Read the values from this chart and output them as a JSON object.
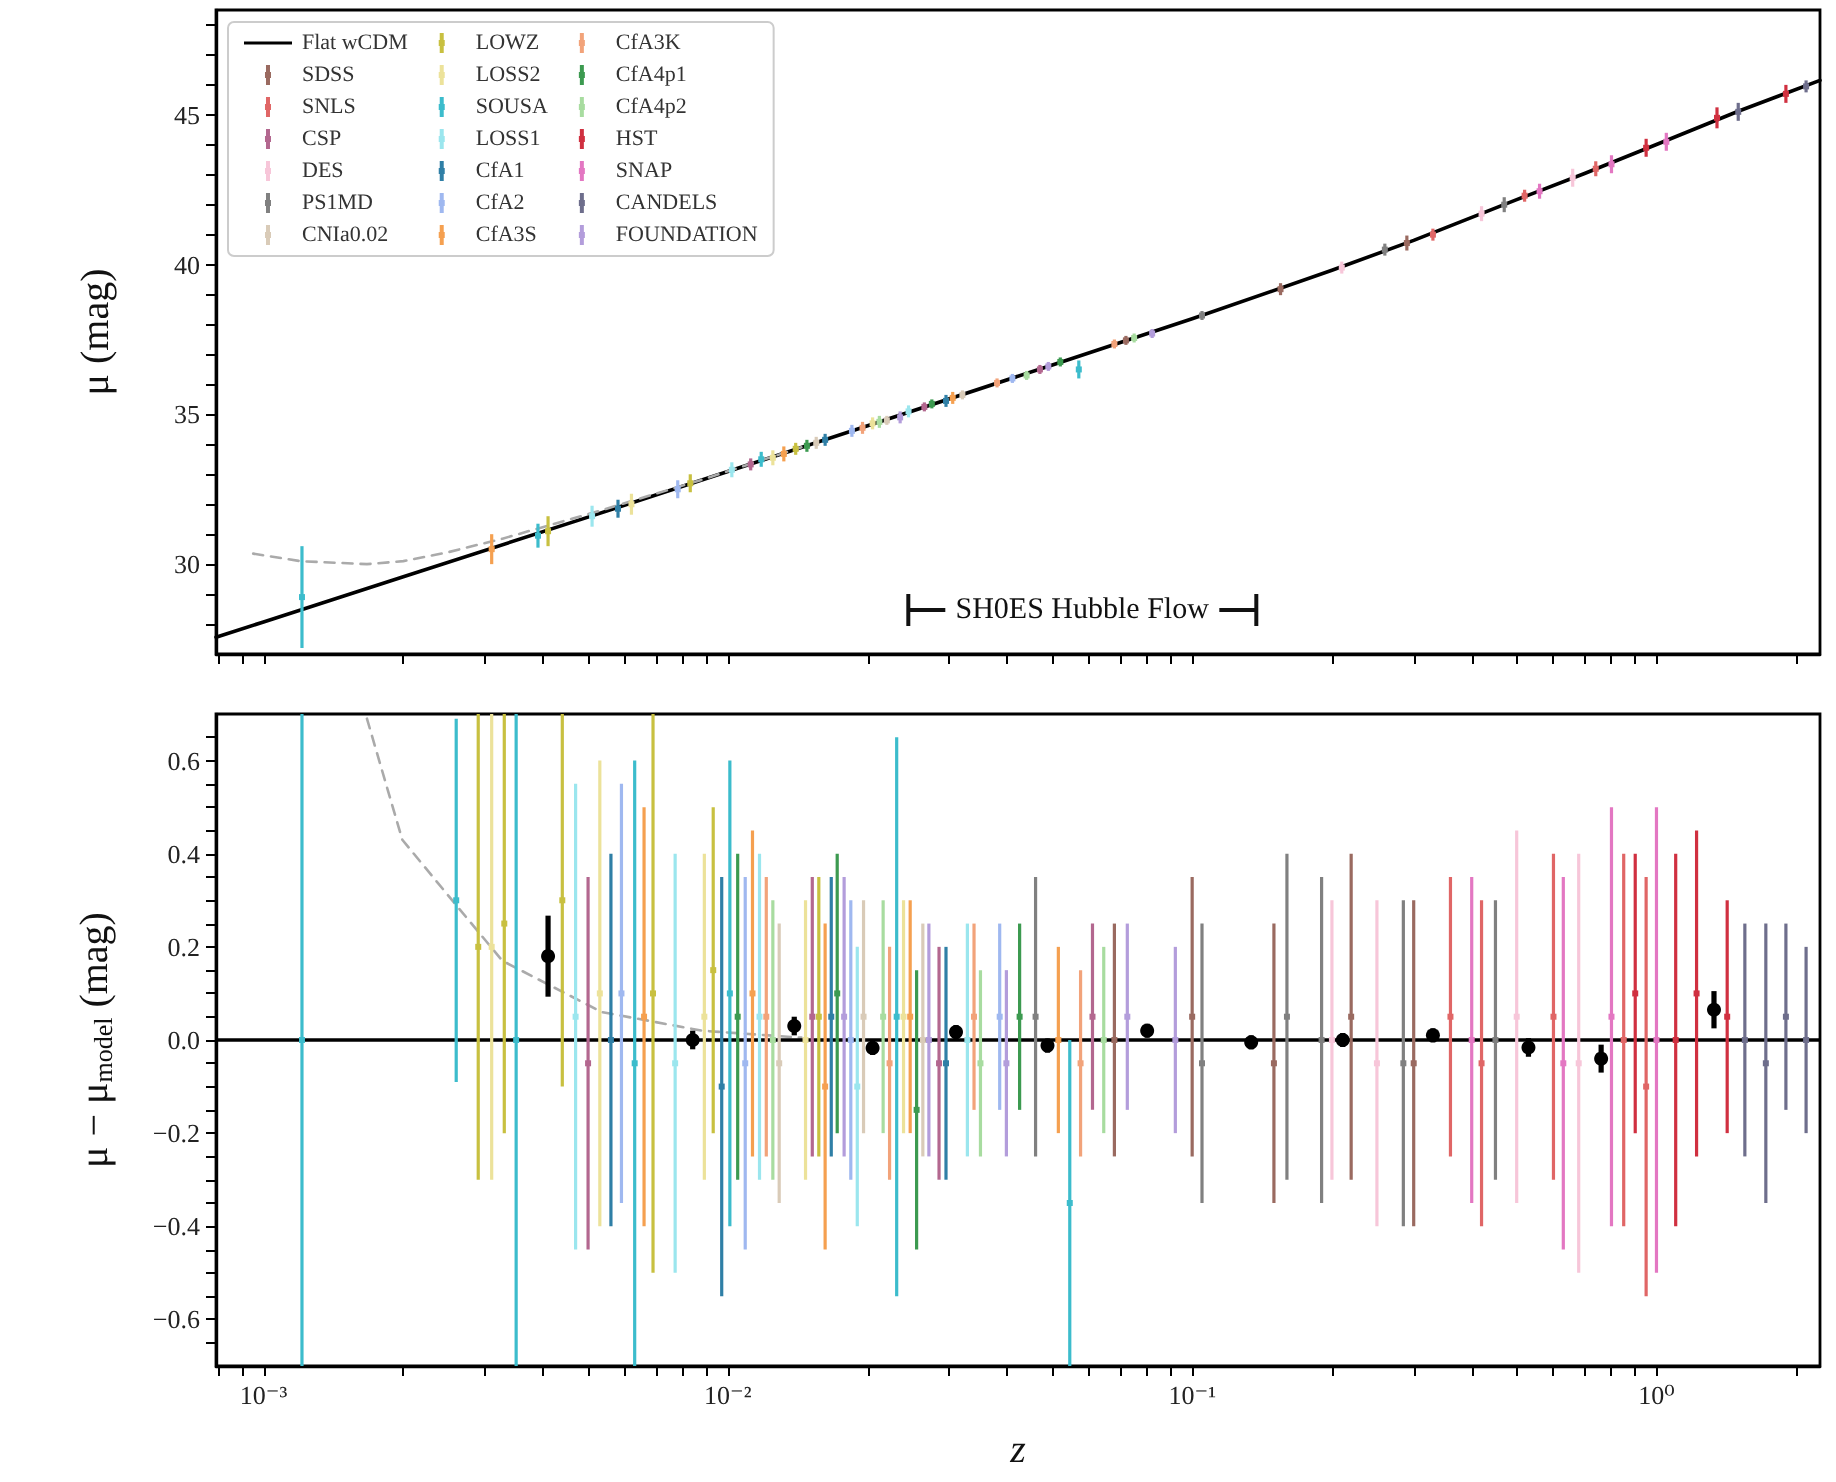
{
  "chart_data": [
    {
      "type": "scatter",
      "ylabel": "μ (mag)",
      "log": "x",
      "tick_labels": "y",
      "legend": "top left",
      "xlim": [
        0.00079,
        2.25
      ],
      "xticks": [
        {
          "value": 0.0008,
          "label": null
        },
        {
          "value": 0.0009,
          "label": null
        },
        {
          "value": 0.001,
          "label": null
        },
        {
          "value": 0.002,
          "label": null
        },
        {
          "value": 0.003,
          "label": null
        },
        {
          "value": 0.004,
          "label": null
        },
        {
          "value": 0.005,
          "label": null
        },
        {
          "value": 0.006,
          "label": null
        },
        {
          "value": 0.007,
          "label": null
        },
        {
          "value": 0.008,
          "label": null
        },
        {
          "value": 0.009,
          "label": null
        },
        {
          "value": 0.01,
          "label": null
        },
        {
          "value": 0.02,
          "label": null
        },
        {
          "value": 0.03,
          "label": null
        },
        {
          "value": 0.04,
          "label": null
        },
        {
          "value": 0.05,
          "label": null
        },
        {
          "value": 0.06,
          "label": null
        },
        {
          "value": 0.07,
          "label": null
        },
        {
          "value": 0.08,
          "label": null
        },
        {
          "value": 0.09,
          "label": null
        },
        {
          "value": 0.1,
          "label": null
        },
        {
          "value": 0.2,
          "label": null
        },
        {
          "value": 0.3,
          "label": null
        },
        {
          "value": 0.4,
          "label": null
        },
        {
          "value": 0.5,
          "label": null
        },
        {
          "value": 0.6,
          "label": null
        },
        {
          "value": 0.7,
          "label": null
        },
        {
          "value": 0.8,
          "label": null
        },
        {
          "value": 0.9,
          "label": null
        },
        {
          "value": 1,
          "label": null
        },
        {
          "value": 2,
          "label": null
        }
      ],
      "ylim": [
        27,
        48.5
      ],
      "yticks": [
        {
          "value": 28,
          "label": null
        },
        {
          "value": 29,
          "label": null
        },
        30,
        {
          "value": 31,
          "label": null
        },
        {
          "value": 32,
          "label": null
        },
        {
          "value": 33,
          "label": null
        },
        {
          "value": 34,
          "label": null
        },
        35,
        {
          "value": 36,
          "label": null
        },
        {
          "value": 37,
          "label": null
        },
        {
          "value": 38,
          "label": null
        },
        {
          "value": 39,
          "label": null
        },
        40,
        {
          "value": 41,
          "label": null
        },
        {
          "value": 42,
          "label": null
        },
        {
          "value": 43,
          "label": null
        },
        {
          "value": 44,
          "label": null
        },
        45,
        {
          "value": 46,
          "label": null
        },
        {
          "value": 47,
          "label": null
        },
        {
          "value": 48,
          "label": null
        }
      ],
      "annotations": [
        "SH0ES Hubble Flow"
      ],
      "series": [
        {
          "name": "Flat wCDM",
          "type": "line",
          "color": "#000000",
          "x": [
            0.00079,
            0.001,
            0.002,
            0.005,
            0.01,
            0.02,
            0.05,
            0.1,
            0.2,
            0.3,
            0.5,
            0.7,
            1,
            1.5,
            2.25
          ],
          "values": [
            27.56,
            28.07,
            29.58,
            31.57,
            33.09,
            34.62,
            36.65,
            38.19,
            39.81,
            40.81,
            42.17,
            43.04,
            44.01,
            45.12,
            46.15
          ]
        },
        {
          "type": "line",
          "line_style": "dashed",
          "color": "#aaaaaa",
          "x": [
            0.00095,
            0.0012,
            0.00167,
            0.002,
            0.0025,
            0.00327,
            0.00535,
            0.0088,
            0.0144
          ],
          "values": [
            30.35,
            30.1,
            30.0,
            30.1,
            30.4,
            30.85,
            31.8,
            32.82,
            33.9
          ]
        },
        {
          "name": "SDSS",
          "marker": "square",
          "color": "#9a6a60",
          "x": [
            0.072,
            0.155,
            0.29
          ],
          "values": [
            37.47,
            39.18,
            40.72
          ],
          "errors": [
            0.15,
            0.2,
            0.25
          ]
        },
        {
          "name": "SNLS",
          "marker": "square",
          "color": "#e06666",
          "x": [
            0.33,
            0.52,
            0.74
          ],
          "values": [
            41.0,
            42.3,
            43.2
          ],
          "errors": [
            0.2,
            0.2,
            0.25
          ]
        },
        {
          "name": "CSP",
          "marker": "square",
          "color": "#b3678f",
          "x": [
            0.0112,
            0.0265,
            0.047
          ],
          "values": [
            33.33,
            35.25,
            36.5
          ],
          "errors": [
            0.2,
            0.15,
            0.15
          ]
        },
        {
          "name": "DES",
          "marker": "square",
          "color": "#f7c6d9",
          "x": [
            0.21,
            0.42,
            0.66
          ],
          "values": [
            39.9,
            41.7,
            42.9
          ],
          "errors": [
            0.2,
            0.25,
            0.3
          ]
        },
        {
          "name": "PS1MD",
          "marker": "square",
          "color": "#808080",
          "x": [
            0.105,
            0.26,
            0.47
          ],
          "values": [
            38.3,
            40.5,
            42.0
          ],
          "errors": [
            0.15,
            0.2,
            0.25
          ]
        },
        {
          "name": "CNIa0.02",
          "marker": "square",
          "color": "#d9cbb8",
          "x": [
            0.0155,
            0.022,
            0.032
          ],
          "values": [
            34.05,
            34.8,
            35.65
          ],
          "errors": [
            0.2,
            0.15,
            0.15
          ]
        },
        {
          "name": "LOWZ",
          "marker": "square",
          "color": "#c8c040",
          "x": [
            0.0041,
            0.0083,
            0.014
          ],
          "values": [
            31.1,
            32.7,
            33.85
          ],
          "errors": [
            0.5,
            0.3,
            0.2
          ]
        },
        {
          "name": "LOSS2",
          "marker": "square",
          "color": "#ece29a",
          "x": [
            0.0062,
            0.0125,
            0.0205
          ],
          "values": [
            32.0,
            33.55,
            34.7
          ],
          "errors": [
            0.35,
            0.25,
            0.2
          ]
        },
        {
          "name": "SOUSA",
          "marker": "square",
          "color": "#3cbccc",
          "x": [
            0.00121,
            0.0039,
            0.0118,
            0.057
          ],
          "values": [
            28.9,
            30.95,
            33.5,
            36.5
          ],
          "errors": [
            1.7,
            0.4,
            0.25,
            0.3
          ]
        },
        {
          "name": "LOSS1",
          "marker": "square",
          "color": "#9be6ee",
          "x": [
            0.0051,
            0.0102,
            0.0245
          ],
          "values": [
            31.6,
            33.15,
            35.1
          ],
          "errors": [
            0.35,
            0.25,
            0.2
          ]
        },
        {
          "name": "CfA1",
          "marker": "square",
          "color": "#2f7fa6",
          "x": [
            0.0058,
            0.0162,
            0.0295
          ],
          "values": [
            31.85,
            34.15,
            35.45
          ],
          "errors": [
            0.3,
            0.2,
            0.2
          ]
        },
        {
          "name": "CfA2",
          "marker": "square",
          "color": "#9fb8f0",
          "x": [
            0.0078,
            0.0185,
            0.041
          ],
          "values": [
            32.5,
            34.45,
            36.2
          ],
          "errors": [
            0.3,
            0.2,
            0.15
          ]
        },
        {
          "name": "CfA3S",
          "marker": "square",
          "color": "#f5a050",
          "x": [
            0.0031,
            0.0132,
            0.0305
          ],
          "values": [
            30.5,
            33.68,
            35.55
          ],
          "errors": [
            0.5,
            0.25,
            0.2
          ]
        },
        {
          "name": "CfA3K",
          "marker": "square",
          "color": "#f2a37a",
          "x": [
            0.0195,
            0.038,
            0.068
          ],
          "values": [
            34.55,
            36.05,
            37.35
          ],
          "errors": [
            0.2,
            0.15,
            0.15
          ]
        },
        {
          "name": "CfA4p1",
          "marker": "square",
          "color": "#3c9a50",
          "x": [
            0.0148,
            0.0275,
            0.052
          ],
          "values": [
            33.95,
            35.35,
            36.75
          ],
          "errors": [
            0.2,
            0.15,
            0.15
          ]
        },
        {
          "name": "CfA4p2",
          "marker": "square",
          "color": "#a8dca0",
          "x": [
            0.0212,
            0.044,
            0.075
          ],
          "values": [
            34.75,
            36.3,
            37.55
          ],
          "errors": [
            0.2,
            0.15,
            0.15
          ]
        },
        {
          "name": "HST",
          "marker": "square",
          "color": "#d03040",
          "x": [
            0.95,
            1.35,
            1.9
          ],
          "values": [
            43.9,
            44.9,
            45.7
          ],
          "errors": [
            0.3,
            0.35,
            0.3
          ]
        },
        {
          "name": "SNAP",
          "marker": "square",
          "color": "#e377c2",
          "x": [
            0.56,
            0.8,
            1.05
          ],
          "values": [
            42.45,
            43.35,
            44.1
          ],
          "errors": [
            0.25,
            0.3,
            0.3
          ]
        },
        {
          "name": "CANDELS",
          "marker": "square",
          "color": "#6e6e8c",
          "x": [
            1.5,
            2.1
          ],
          "values": [
            45.1,
            45.95
          ],
          "errors": [
            0.3,
            0.2
          ]
        },
        {
          "name": "FOUNDATION",
          "marker": "square",
          "color": "#b39ddb",
          "x": [
            0.0235,
            0.049,
            0.082
          ],
          "values": [
            34.9,
            36.6,
            37.7
          ],
          "errors": [
            0.2,
            0.15,
            0.15
          ]
        }
      ]
    },
    {
      "type": "scatter",
      "xlabel": "z",
      "ylabel": "μ − μ$_{model}$ (mag)",
      "log": "x",
      "xlim": [
        0.00079,
        2.25
      ],
      "xticks": [
        {
          "value": 0.0008,
          "label": null
        },
        {
          "value": 0.0009,
          "label": null
        },
        {
          "value": 0.001,
          "label": "10⁻³"
        },
        {
          "value": 0.002,
          "label": null
        },
        {
          "value": 0.003,
          "label": null
        },
        {
          "value": 0.004,
          "label": null
        },
        {
          "value": 0.005,
          "label": null
        },
        {
          "value": 0.006,
          "label": null
        },
        {
          "value": 0.007,
          "label": null
        },
        {
          "value": 0.008,
          "label": null
        },
        {
          "value": 0.009,
          "label": null
        },
        {
          "value": 0.01,
          "label": "10⁻²"
        },
        {
          "value": 0.02,
          "label": null
        },
        {
          "value": 0.03,
          "label": null
        },
        {
          "value": 0.04,
          "label": null
        },
        {
          "value": 0.05,
          "label": null
        },
        {
          "value": 0.06,
          "label": null
        },
        {
          "value": 0.07,
          "label": null
        },
        {
          "value": 0.08,
          "label": null
        },
        {
          "value": 0.09,
          "label": null
        },
        {
          "value": 0.1,
          "label": "10⁻¹"
        },
        {
          "value": 0.2,
          "label": null
        },
        {
          "value": 0.3,
          "label": null
        },
        {
          "value": 0.4,
          "label": null
        },
        {
          "value": 0.5,
          "label": null
        },
        {
          "value": 0.6,
          "label": null
        },
        {
          "value": 0.7,
          "label": null
        },
        {
          "value": 0.8,
          "label": null
        },
        {
          "value": 0.9,
          "label": null
        },
        {
          "value": 1,
          "label": "10⁰"
        },
        {
          "value": 2,
          "label": null
        }
      ],
      "ylim": [
        -0.7,
        0.7
      ],
      "yticks": [
        {
          "value": -0.65,
          "label": null
        },
        {
          "value": -0.6,
          "label": "−0.6"
        },
        {
          "value": -0.55,
          "label": null
        },
        {
          "value": -0.5,
          "label": null
        },
        {
          "value": -0.45,
          "label": null
        },
        {
          "value": -0.4,
          "label": "−0.4"
        },
        {
          "value": -0.35,
          "label": null
        },
        {
          "value": -0.3,
          "label": null
        },
        {
          "value": -0.25,
          "label": null
        },
        {
          "value": -0.2,
          "label": "−0.2"
        },
        {
          "value": -0.15,
          "label": null
        },
        {
          "value": -0.1,
          "label": null
        },
        {
          "value": -0.05,
          "label": null
        },
        {
          "value": 0,
          "label": "0.0"
        },
        {
          "value": 0.05,
          "label": null
        },
        {
          "value": 0.1,
          "label": null
        },
        {
          "value": 0.15,
          "label": null
        },
        0.2,
        {
          "value": 0.25,
          "label": null
        },
        {
          "value": 0.3,
          "label": null
        },
        {
          "value": 0.35,
          "label": null
        },
        0.4,
        {
          "value": 0.45,
          "label": null
        },
        {
          "value": 0.5,
          "label": null
        },
        {
          "value": 0.55,
          "label": null
        },
        0.6,
        {
          "value": 0.65,
          "label": null
        }
      ],
      "ref_lines": [
        {
          "axis": "y",
          "value": 0,
          "color": "#000000"
        }
      ],
      "series": [
        {
          "marker": "square",
          "color": "#9a6a60",
          "x": [
            0.068,
            0.1,
            0.15,
            0.22,
            0.3
          ],
          "values": [
            0.0,
            0.05,
            -0.05,
            0.05,
            -0.05
          ],
          "errors": [
            0.25,
            0.3,
            0.3,
            0.35,
            0.35
          ]
        },
        {
          "marker": "square",
          "color": "#e06666",
          "x": [
            0.36,
            0.42,
            0.6,
            0.85,
            0.95
          ],
          "values": [
            0.05,
            -0.05,
            0.05,
            0.0,
            -0.1
          ],
          "errors": [
            0.3,
            0.35,
            0.35,
            0.4,
            0.45
          ]
        },
        {
          "marker": "square",
          "color": "#b3678f",
          "x": [
            0.005,
            0.0152,
            0.0285,
            0.061
          ],
          "values": [
            -0.05,
            0.05,
            -0.05,
            0.05
          ],
          "errors": [
            0.4,
            0.3,
            0.25,
            0.2
          ]
        },
        {
          "marker": "square",
          "color": "#f7c6d9",
          "x": [
            0.2,
            0.25,
            0.5,
            0.68
          ],
          "values": [
            0.0,
            -0.05,
            0.05,
            -0.05
          ],
          "errors": [
            0.3,
            0.35,
            0.4,
            0.45
          ]
        },
        {
          "marker": "square",
          "color": "#808080",
          "x": [
            0.046,
            0.105,
            0.16,
            0.19,
            0.285,
            0.45
          ],
          "values": [
            0.05,
            -0.05,
            0.05,
            0.0,
            -0.05,
            0.0
          ],
          "errors": [
            0.3,
            0.3,
            0.35,
            0.35,
            0.35,
            0.3
          ]
        },
        {
          "marker": "square",
          "color": "#d9cbb8",
          "x": [
            0.0129,
            0.0196,
            0.0263
          ],
          "values": [
            -0.05,
            0.05,
            0.0
          ],
          "errors": [
            0.3,
            0.25,
            0.25
          ]
        },
        {
          "marker": "square",
          "color": "#c8c040",
          "x": [
            0.0029,
            0.0033,
            0.0044,
            0.0069,
            0.0093,
            0.0157
          ],
          "values": [
            0.2,
            0.25,
            0.3,
            0.1,
            0.15,
            0.05
          ],
          "errors": [
            0.5,
            0.45,
            0.4,
            0.6,
            0.35,
            0.3
          ]
        },
        {
          "marker": "square",
          "color": "#ece29a",
          "x": [
            0.0031,
            0.0053,
            0.0089,
            0.0147,
            0.0239
          ],
          "values": [
            0.2,
            0.1,
            0.05,
            0.0,
            0.05
          ],
          "errors": [
            0.5,
            0.5,
            0.35,
            0.3,
            0.25
          ]
        },
        {
          "marker": "square",
          "color": "#3cbccc",
          "x": [
            0.00121,
            0.0026,
            0.0035,
            0.0063,
            0.0101,
            0.0231,
            0.0545
          ],
          "values": [
            0,
            0.3,
            0.0,
            -0.05,
            0.1,
            0.05,
            -0.35
          ],
          "errors": [
            0.7,
            0.39,
            0.7,
            0.65,
            0.5,
            0.6,
            0.35
          ]
        },
        {
          "marker": "square",
          "color": "#9be6ee",
          "x": [
            0.0047,
            0.0077,
            0.0117,
            0.019,
            0.0328
          ],
          "values": [
            0.05,
            -0.05,
            0.05,
            -0.1,
            0.0
          ],
          "errors": [
            0.5,
            0.45,
            0.35,
            0.3,
            0.25
          ]
        },
        {
          "marker": "square",
          "color": "#2f7fa6",
          "x": [
            0.0056,
            0.0097,
            0.0167,
            0.0295
          ],
          "values": [
            0.0,
            -0.1,
            0.05,
            -0.05
          ],
          "errors": [
            0.4,
            0.45,
            0.3,
            0.25
          ]
        },
        {
          "marker": "square",
          "color": "#9fb8f0",
          "x": [
            0.0059,
            0.0109,
            0.0184,
            0.0385
          ],
          "values": [
            0.1,
            -0.05,
            0.0,
            0.05
          ],
          "errors": [
            0.45,
            0.4,
            0.3,
            0.2
          ]
        },
        {
          "marker": "square",
          "color": "#f5a050",
          "x": [
            0.0066,
            0.0113,
            0.0162,
            0.0247,
            0.0515
          ],
          "values": [
            0.05,
            0.1,
            -0.1,
            0.05,
            0.0
          ],
          "errors": [
            0.45,
            0.35,
            0.35,
            0.25,
            0.2
          ]
        },
        {
          "marker": "square",
          "color": "#f2a37a",
          "x": [
            0.0121,
            0.0223,
            0.0339,
            0.0575
          ],
          "values": [
            0.05,
            -0.05,
            0.05,
            -0.05
          ],
          "errors": [
            0.3,
            0.25,
            0.2,
            0.2
          ]
        },
        {
          "marker": "square",
          "color": "#3c9a50",
          "x": [
            0.0105,
            0.0172,
            0.0255,
            0.0425
          ],
          "values": [
            0.05,
            0.1,
            -0.15,
            0.05
          ],
          "errors": [
            0.35,
            0.3,
            0.3,
            0.2
          ]
        },
        {
          "marker": "square",
          "color": "#a8dca0",
          "x": [
            0.0125,
            0.0216,
            0.035,
            0.0645
          ],
          "values": [
            0.0,
            0.05,
            -0.05,
            0.0
          ],
          "errors": [
            0.3,
            0.25,
            0.2,
            0.2
          ]
        },
        {
          "marker": "square",
          "color": "#d03040",
          "x": [
            0.9,
            1.1,
            1.22,
            1.42
          ],
          "values": [
            0.1,
            0.0,
            0.1,
            0.05
          ],
          "errors": [
            0.3,
            0.4,
            0.35,
            0.25
          ]
        },
        {
          "marker": "square",
          "color": "#e377c2",
          "x": [
            0.4,
            0.63,
            0.8,
            1.0
          ],
          "values": [
            0.0,
            -0.05,
            0.05,
            0.0
          ],
          "errors": [
            0.35,
            0.4,
            0.45,
            0.5
          ]
        },
        {
          "marker": "square",
          "color": "#6e6e8c",
          "x": [
            1.55,
            1.72,
            1.9,
            2.1
          ],
          "values": [
            0.0,
            -0.05,
            0.05,
            0.0
          ],
          "errors": [
            0.25,
            0.3,
            0.2,
            0.2
          ]
        },
        {
          "marker": "square",
          "color": "#b39ddb",
          "x": [
            0.0178,
            0.0271,
            0.0398,
            0.0725,
            0.092
          ],
          "values": [
            0.05,
            0.0,
            -0.05,
            0.05,
            0.0
          ],
          "errors": [
            0.3,
            0.25,
            0.2,
            0.2,
            0.2
          ]
        },
        {
          "type": "line",
          "line_style": "dashed",
          "color": "#aaaaaa",
          "x": [
            0.00167,
            0.00199,
            0.0025,
            0.00327,
            0.00535,
            0.0088,
            0.0144
          ],
          "values": [
            0.69,
            0.43,
            0.31,
            0.17,
            0.06,
            0.02,
            0.005
          ]
        },
        {
          "marker": "circle",
          "color": "#000000",
          "x": [
            0.0041,
            0.0084,
            0.0139,
            0.0205,
            0.031,
            0.0488,
            0.08,
            0.134,
            0.211,
            0.33,
            0.53,
            0.76,
            1.33
          ],
          "values": [
            0.18,
            0.0,
            0.03,
            -0.017,
            0.017,
            -0.012,
            0.02,
            -0.005,
            0.0,
            0.01,
            -0.016,
            -0.04,
            0.065
          ],
          "errors": [
            0.087,
            0.02,
            0.02,
            0.015,
            0.015,
            0.015,
            0.015,
            0.015,
            0.015,
            0.015,
            0.02,
            0.03,
            0.04
          ]
        }
      ]
    }
  ]
}
